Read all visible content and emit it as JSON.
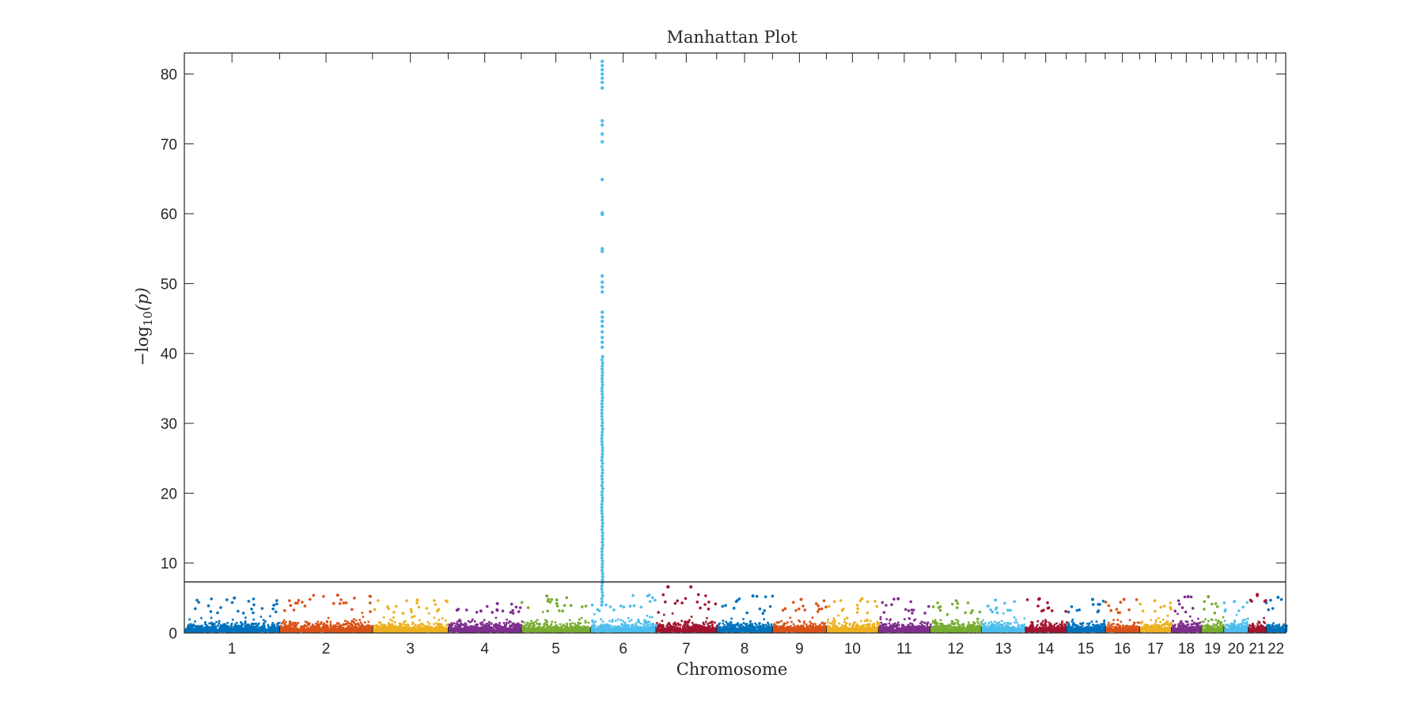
{
  "chart_data": {
    "type": "scatter",
    "title": "Manhattan Plot",
    "xlabel": "Chromosome",
    "ylabel_prefix": "−log",
    "ylabel_sub": "10",
    "ylabel_arg": "(p)",
    "ylim": [
      0,
      83
    ],
    "yticks": [
      0,
      10,
      20,
      30,
      40,
      50,
      60,
      70,
      80
    ],
    "grid": false,
    "significance_threshold": 7.3,
    "colors": [
      "#0072BD",
      "#D95319",
      "#EDB120",
      "#7E2F8E",
      "#77AC30",
      "#4DBEEE",
      "#A2142F"
    ],
    "chromosomes": [
      {
        "label": "1",
        "length": 249,
        "peak": 5.0
      },
      {
        "label": "2",
        "length": 243,
        "peak": 5.4
      },
      {
        "label": "3",
        "length": 198,
        "peak": 4.7
      },
      {
        "label": "4",
        "length": 191,
        "peak": 4.2
      },
      {
        "label": "5",
        "length": 181,
        "peak": 5.3
      },
      {
        "label": "6",
        "length": 171,
        "peak": 81.8
      },
      {
        "label": "7",
        "length": 159,
        "peak": 6.6
      },
      {
        "label": "8",
        "length": 146,
        "peak": 5.3
      },
      {
        "label": "9",
        "length": 141,
        "peak": 4.8
      },
      {
        "label": "10",
        "length": 136,
        "peak": 4.9
      },
      {
        "label": "11",
        "length": 135,
        "peak": 4.9
      },
      {
        "label": "12",
        "length": 134,
        "peak": 4.6
      },
      {
        "label": "13",
        "length": 115,
        "peak": 4.7
      },
      {
        "label": "14",
        "length": 107,
        "peak": 4.9
      },
      {
        "label": "15",
        "length": 102,
        "peak": 4.8
      },
      {
        "label": "16",
        "length": 90,
        "peak": 4.8
      },
      {
        "label": "17",
        "length": 83,
        "peak": 4.6
      },
      {
        "label": "18",
        "length": 78,
        "peak": 5.2
      },
      {
        "label": "19",
        "length": 59,
        "peak": 5.2
      },
      {
        "label": "20",
        "length": 64,
        "peak": 4.5
      },
      {
        "label": "21",
        "length": 47,
        "peak": 5.5
      },
      {
        "label": "22",
        "length": 51,
        "peak": 5.1
      }
    ],
    "top_hits": [
      {
        "chromosome": "6",
        "values": [
          81.8,
          81.2,
          80.6,
          80.0,
          79.4,
          78.8,
          78.0,
          73.3,
          72.7,
          71.4,
          70.3,
          64.9,
          60.1,
          59.9,
          55.0,
          54.6,
          51.1,
          50.2,
          49.5,
          48.8,
          45.9,
          45.2,
          44.6,
          43.9,
          43.1,
          42.3,
          41.6,
          40.9
        ]
      },
      {
        "chromosome": "7",
        "values": [
          6.6
        ]
      }
    ]
  }
}
